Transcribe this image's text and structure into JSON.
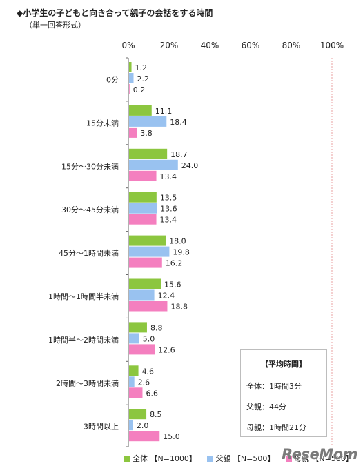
{
  "title": "◆小学生の子どもと向き合って親子の会話をする時間",
  "subtitle": "（単一回答形式）",
  "chart_data": {
    "type": "bar",
    "orientation": "horizontal",
    "xlim": [
      0,
      100
    ],
    "xticks": [
      "0%",
      "20%",
      "40%",
      "60%",
      "80%",
      "100%"
    ],
    "categories": [
      "0分",
      "15分未満",
      "15分～30分未満",
      "30分～45分未満",
      "45分～1時間未満",
      "1時間～1時間半未満",
      "1時間半～2時間未満",
      "2時間～3時間未満",
      "3時間以上"
    ],
    "series": [
      {
        "name": "全体 【N=1000】",
        "color": "#8cc63f",
        "values": [
          1.2,
          11.1,
          18.7,
          13.5,
          18.0,
          15.6,
          8.8,
          4.6,
          8.5
        ]
      },
      {
        "name": "父親 【N=500】",
        "color": "#99c2f0",
        "values": [
          2.2,
          18.4,
          24.0,
          13.6,
          19.8,
          12.4,
          5.0,
          2.6,
          2.0
        ]
      },
      {
        "name": "母親 【N=500】",
        "color": "#f47fbf",
        "values": [
          0.2,
          3.8,
          13.4,
          13.4,
          16.2,
          18.8,
          12.6,
          6.6,
          15.0
        ]
      }
    ],
    "data_labels": [
      [
        "1.2",
        "11.1",
        "18.7",
        "13.5",
        "18.0",
        "15.6",
        "8.8",
        "4.6",
        "8.5"
      ],
      [
        "2.2",
        "18.4",
        "24.0",
        "13.6",
        "19.8",
        "12.4",
        "5.0",
        "2.6",
        "2.0"
      ],
      [
        "0.2",
        "3.8",
        "13.4",
        "13.4",
        "16.2",
        "18.8",
        "12.6",
        "6.6",
        "15.0"
      ]
    ],
    "legend_position": "bottom",
    "grid": false
  },
  "average_box": {
    "heading": "【平均時間】",
    "rows": [
      "全体：1時間3分",
      "父親：44分",
      "母親：1時間21分"
    ]
  },
  "watermark": "ReseMom"
}
